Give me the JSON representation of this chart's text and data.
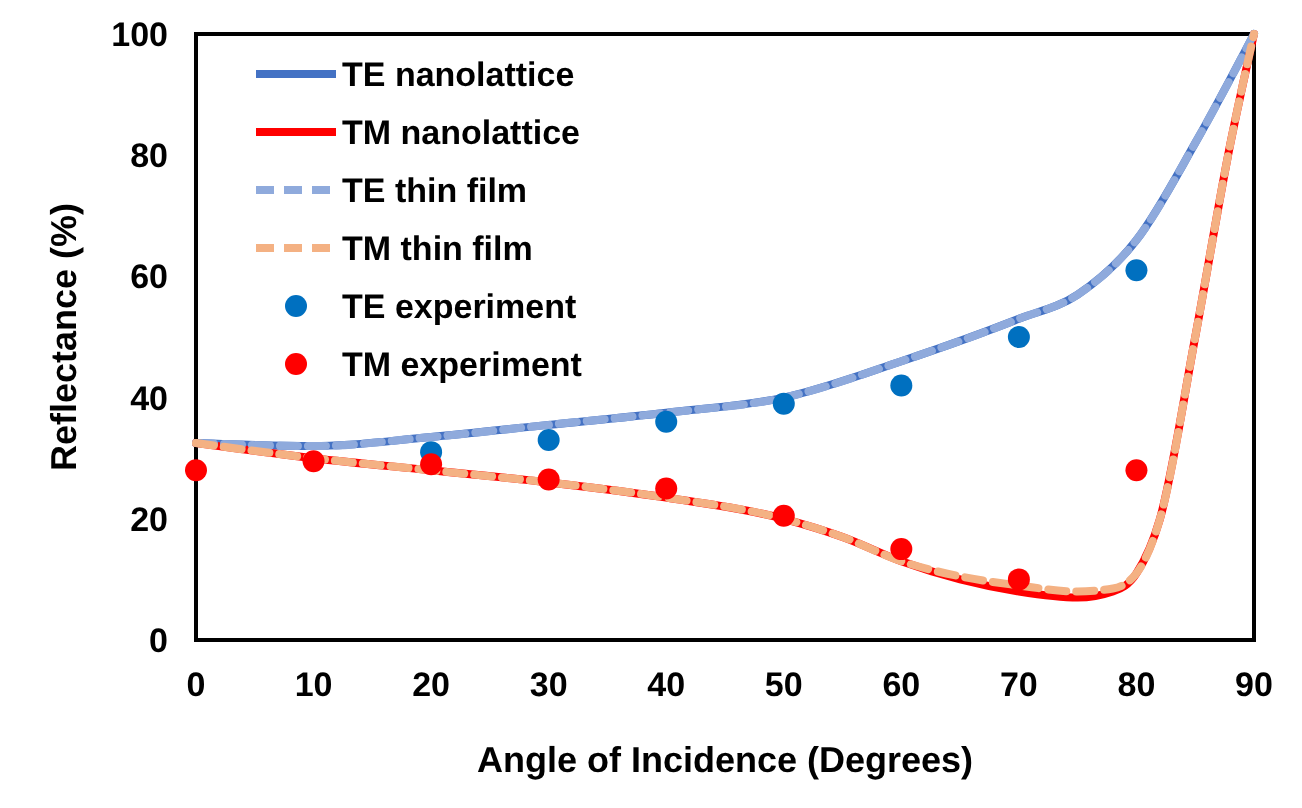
{
  "chart_data": {
    "type": "line",
    "xlabel": "Angle of Incidence (Degrees)",
    "ylabel": "Reflectance (%)",
    "xlim": [
      0,
      90
    ],
    "xticks": [
      0,
      10,
      20,
      30,
      40,
      50,
      60,
      70,
      80,
      90
    ],
    "ylim": [
      0,
      100
    ],
    "yticks": [
      0,
      20,
      40,
      60,
      80,
      100
    ],
    "grid": false,
    "legend": "top left",
    "series": [
      {
        "name": "TE nanolattice",
        "color": "#4472c4",
        "line_style": "solid",
        "x": [
          0,
          10,
          20,
          30,
          40,
          50,
          60,
          70,
          75,
          80,
          85,
          90
        ],
        "values": [
          32.5,
          32,
          33.5,
          35.5,
          37.5,
          40,
          46,
          53,
          57,
          66,
          82,
          100
        ]
      },
      {
        "name": "TM nanolattice",
        "color": "#ff0000",
        "line_style": "solid",
        "x": [
          0,
          10,
          20,
          30,
          40,
          50,
          55,
          60,
          65,
          70,
          75,
          78,
          80,
          82,
          85,
          88,
          90
        ],
        "values": [
          32.5,
          30,
          28,
          26,
          23.5,
          20,
          17,
          13,
          10,
          8,
          7,
          8,
          11,
          20,
          50,
          82,
          100
        ]
      },
      {
        "name": "TE thin film",
        "color": "#8faadc",
        "line_style": "dashed",
        "x": [
          0,
          10,
          20,
          30,
          40,
          50,
          60,
          70,
          75,
          80,
          85,
          90
        ],
        "values": [
          32.5,
          32,
          33.5,
          35.5,
          37.5,
          40,
          46,
          53,
          57,
          66,
          82,
          100
        ]
      },
      {
        "name": "TM thin film",
        "color": "#f4b183",
        "line_style": "dashed",
        "x": [
          0,
          10,
          20,
          30,
          40,
          50,
          55,
          60,
          65,
          70,
          75,
          78,
          80,
          82,
          85,
          88,
          90
        ],
        "values": [
          32.5,
          30,
          28,
          26,
          23.5,
          20,
          17,
          13,
          10.5,
          9,
          8,
          8.5,
          11,
          20,
          50,
          82,
          100
        ]
      },
      {
        "name": "TE experiment",
        "type": "scatter",
        "color": "#0070c0",
        "marker": "circle",
        "x": [
          20,
          30,
          40,
          50,
          60,
          70,
          80
        ],
        "values": [
          31,
          33,
          36,
          39,
          42,
          50,
          61
        ]
      },
      {
        "name": "TM experiment",
        "type": "scatter",
        "color": "#ff0000",
        "marker": "circle",
        "x": [
          0,
          10,
          20,
          30,
          40,
          50,
          60,
          70,
          80
        ],
        "values": [
          28,
          29.5,
          29,
          26.5,
          25,
          20.5,
          15,
          10,
          28
        ]
      }
    ]
  }
}
